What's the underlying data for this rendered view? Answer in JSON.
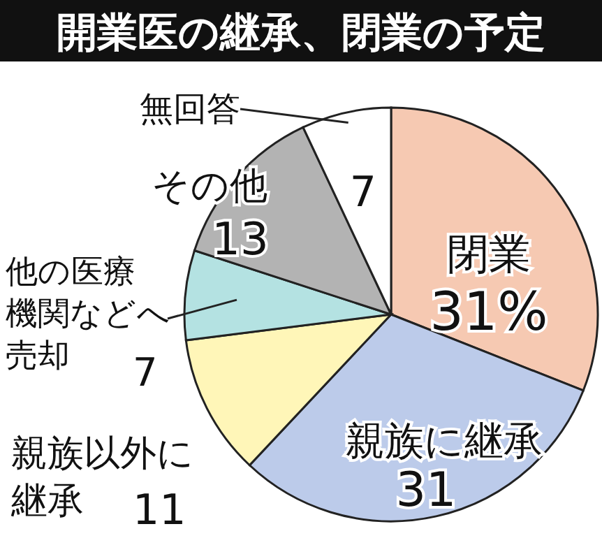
{
  "chart_data": {
    "type": "pie",
    "title": "開業医の継承、閉業の予定",
    "categories": [
      "閉業",
      "親族に継承",
      "親族以外に継承",
      "他の医療機関などへ売却",
      "その他",
      "無回答"
    ],
    "values": [
      31,
      31,
      11,
      7,
      13,
      7
    ],
    "value_labels": [
      "31%",
      "31",
      "11",
      "7",
      "13",
      "7"
    ],
    "colors": [
      "#f6c9b2",
      "#bccbea",
      "#fff6b8",
      "#b4e2e2",
      "#b3b3b3",
      "#ffffff"
    ]
  }
}
